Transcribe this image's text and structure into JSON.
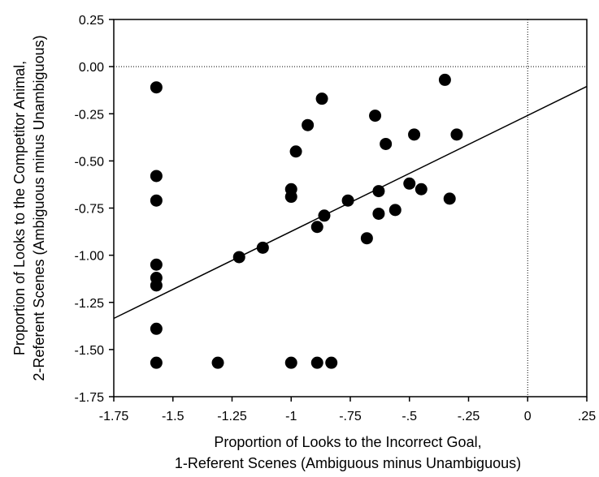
{
  "chart_data": {
    "type": "scatter",
    "title": "",
    "xlabel_lines": [
      "Proportion of Looks to the Incorrect Goal,",
      "1-Referent Scenes (Ambiguous minus Unambiguous)"
    ],
    "ylabel_lines": [
      "Proportion of Looks to the Competitor Animal,",
      "2-Referent Scenes (Ambiguous minus Unambiguous)"
    ],
    "xlim": [
      -1.75,
      0.25
    ],
    "ylim": [
      -1.75,
      0.25
    ],
    "x_ticks": [
      {
        "value": -1.75,
        "label": "-1.75"
      },
      {
        "value": -1.5,
        "label": "-1.5"
      },
      {
        "value": -1.25,
        "label": "-1.25"
      },
      {
        "value": -1.0,
        "label": "-1"
      },
      {
        "value": -0.75,
        "label": "-.75"
      },
      {
        "value": -0.5,
        "label": "-.5"
      },
      {
        "value": -0.25,
        "label": "-.25"
      },
      {
        "value": 0.0,
        "label": "0"
      },
      {
        "value": 0.25,
        "label": ".25"
      }
    ],
    "y_ticks": [
      {
        "value": 0.25,
        "label": "0.25"
      },
      {
        "value": 0.0,
        "label": "0.00"
      },
      {
        "value": -0.25,
        "label": "-0.25"
      },
      {
        "value": -0.5,
        "label": "-0.50"
      },
      {
        "value": -0.75,
        "label": "-0.75"
      },
      {
        "value": -1.0,
        "label": "-1.00"
      },
      {
        "value": -1.25,
        "label": "-1.25"
      },
      {
        "value": -1.5,
        "label": "-1.50"
      },
      {
        "value": -1.75,
        "label": "-1.75"
      }
    ],
    "reference_lines": {
      "x": 0.0,
      "y": 0.0,
      "style": "dotted"
    },
    "grid": false,
    "trend_line": {
      "x_start": -1.75,
      "y_start": -1.335,
      "x_end": 0.25,
      "y_end": -0.105
    },
    "points": [
      {
        "x": -1.57,
        "y": -0.11
      },
      {
        "x": -1.57,
        "y": -0.58
      },
      {
        "x": -1.57,
        "y": -0.71
      },
      {
        "x": -1.57,
        "y": -1.05
      },
      {
        "x": -1.57,
        "y": -1.12
      },
      {
        "x": -1.57,
        "y": -1.16
      },
      {
        "x": -1.57,
        "y": -1.39
      },
      {
        "x": -1.57,
        "y": -1.57
      },
      {
        "x": -1.31,
        "y": -1.57
      },
      {
        "x": -1.22,
        "y": -1.01
      },
      {
        "x": -1.12,
        "y": -0.96
      },
      {
        "x": -1.0,
        "y": -0.65
      },
      {
        "x": -1.0,
        "y": -0.69
      },
      {
        "x": -1.0,
        "y": -1.57
      },
      {
        "x": -0.98,
        "y": -0.45
      },
      {
        "x": -0.93,
        "y": -0.31
      },
      {
        "x": -0.89,
        "y": -0.85
      },
      {
        "x": -0.89,
        "y": -1.57
      },
      {
        "x": -0.87,
        "y": -0.17
      },
      {
        "x": -0.86,
        "y": -0.79
      },
      {
        "x": -0.83,
        "y": -1.57
      },
      {
        "x": -0.76,
        "y": -0.71
      },
      {
        "x": -0.68,
        "y": -0.91
      },
      {
        "x": -0.645,
        "y": -0.26
      },
      {
        "x": -0.63,
        "y": -0.66
      },
      {
        "x": -0.63,
        "y": -0.78
      },
      {
        "x": -0.6,
        "y": -0.41
      },
      {
        "x": -0.56,
        "y": -0.76
      },
      {
        "x": -0.5,
        "y": -0.62
      },
      {
        "x": -0.48,
        "y": -0.36
      },
      {
        "x": -0.45,
        "y": -0.65
      },
      {
        "x": -0.35,
        "y": -0.07
      },
      {
        "x": -0.33,
        "y": -0.7
      },
      {
        "x": -0.3,
        "y": -0.36
      }
    ]
  }
}
